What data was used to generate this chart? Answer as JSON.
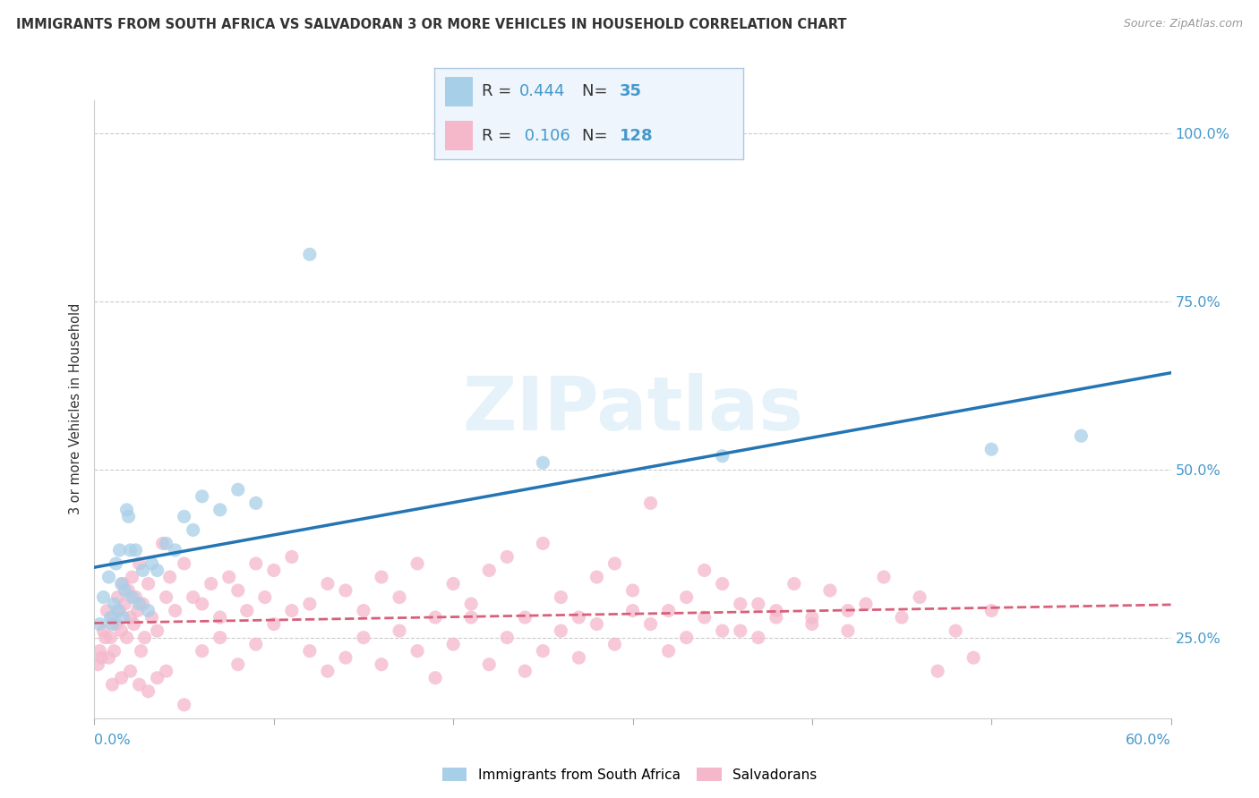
{
  "title": "IMMIGRANTS FROM SOUTH AFRICA VS SALVADORAN 3 OR MORE VEHICLES IN HOUSEHOLD CORRELATION CHART",
  "source": "Source: ZipAtlas.com",
  "ylabel": "3 or more Vehicles in Household",
  "legend_label1": "Immigrants from South Africa",
  "legend_label2": "Salvadorans",
  "R1": "0.444",
  "N1": "35",
  "R2": "0.106",
  "N2": "128",
  "color1": "#a8cfe8",
  "color2": "#f5b8cb",
  "line_color1": "#2475b4",
  "line_color2": "#d95f7a",
  "accent_color": "#4499cc",
  "xmin": 0.0,
  "xmax": 60.0,
  "ymin": 13.0,
  "ymax": 105.0,
  "yticks": [
    25.0,
    50.0,
    75.0,
    100.0
  ],
  "blue_scatter_x": [
    0.3,
    0.5,
    0.8,
    0.9,
    1.0,
    1.1,
    1.2,
    1.3,
    1.4,
    1.5,
    1.6,
    1.7,
    1.8,
    1.9,
    2.0,
    2.1,
    2.3,
    2.5,
    2.7,
    3.0,
    3.2,
    3.5,
    4.0,
    4.5,
    5.0,
    5.5,
    6.0,
    7.0,
    8.0,
    9.0,
    12.0,
    25.0,
    35.0,
    50.0,
    55.0
  ],
  "blue_scatter_y": [
    27.0,
    31.0,
    34.0,
    28.0,
    27.0,
    30.0,
    36.0,
    29.0,
    38.0,
    33.0,
    28.0,
    32.0,
    44.0,
    43.0,
    38.0,
    31.0,
    38.0,
    30.0,
    35.0,
    29.0,
    36.0,
    35.0,
    39.0,
    38.0,
    43.0,
    41.0,
    46.0,
    44.0,
    47.0,
    45.0,
    82.0,
    51.0,
    52.0,
    53.0,
    55.0
  ],
  "pink_scatter_x": [
    0.2,
    0.3,
    0.4,
    0.5,
    0.6,
    0.7,
    0.8,
    0.9,
    1.0,
    1.1,
    1.2,
    1.3,
    1.4,
    1.5,
    1.6,
    1.7,
    1.8,
    1.9,
    2.0,
    2.1,
    2.2,
    2.3,
    2.4,
    2.5,
    2.6,
    2.7,
    2.8,
    3.0,
    3.2,
    3.5,
    3.8,
    4.0,
    4.2,
    4.5,
    5.0,
    5.5,
    6.0,
    6.5,
    7.0,
    7.5,
    8.0,
    8.5,
    9.0,
    9.5,
    10.0,
    11.0,
    12.0,
    13.0,
    14.0,
    15.0,
    16.0,
    17.0,
    18.0,
    19.0,
    20.0,
    21.0,
    22.0,
    23.0,
    24.0,
    25.0,
    26.0,
    27.0,
    28.0,
    29.0,
    30.0,
    31.0,
    32.0,
    33.0,
    34.0,
    35.0,
    36.0,
    37.0,
    38.0,
    39.0,
    40.0,
    41.0,
    42.0,
    43.0,
    44.0,
    45.0,
    46.0,
    47.0,
    48.0,
    49.0,
    50.0,
    1.0,
    1.5,
    2.0,
    2.5,
    3.0,
    3.5,
    4.0,
    5.0,
    6.0,
    7.0,
    8.0,
    9.0,
    10.0,
    11.0,
    12.0,
    13.0,
    14.0,
    15.0,
    16.0,
    17.0,
    18.0,
    19.0,
    20.0,
    21.0,
    22.0,
    23.0,
    24.0,
    25.0,
    26.0,
    27.0,
    28.0,
    29.0,
    30.0,
    31.0,
    32.0,
    33.0,
    34.0,
    35.0,
    36.0,
    37.0,
    38.0,
    40.0,
    42.0
  ],
  "pink_scatter_y": [
    21.0,
    23.0,
    22.0,
    26.0,
    25.0,
    29.0,
    22.0,
    25.0,
    28.0,
    23.0,
    27.0,
    31.0,
    29.0,
    26.0,
    33.0,
    30.0,
    25.0,
    32.0,
    28.0,
    34.0,
    27.0,
    31.0,
    29.0,
    36.0,
    23.0,
    30.0,
    25.0,
    33.0,
    28.0,
    26.0,
    39.0,
    31.0,
    34.0,
    29.0,
    36.0,
    31.0,
    30.0,
    33.0,
    28.0,
    34.0,
    32.0,
    29.0,
    36.0,
    31.0,
    35.0,
    37.0,
    30.0,
    33.0,
    32.0,
    29.0,
    34.0,
    31.0,
    36.0,
    28.0,
    33.0,
    30.0,
    35.0,
    37.0,
    28.0,
    39.0,
    31.0,
    28.0,
    34.0,
    36.0,
    32.0,
    45.0,
    29.0,
    31.0,
    35.0,
    33.0,
    26.0,
    30.0,
    29.0,
    33.0,
    27.0,
    32.0,
    29.0,
    30.0,
    34.0,
    28.0,
    31.0,
    20.0,
    26.0,
    22.0,
    29.0,
    18.0,
    19.0,
    20.0,
    18.0,
    17.0,
    19.0,
    20.0,
    15.0,
    23.0,
    25.0,
    21.0,
    24.0,
    27.0,
    29.0,
    23.0,
    20.0,
    22.0,
    25.0,
    21.0,
    26.0,
    23.0,
    19.0,
    24.0,
    28.0,
    21.0,
    25.0,
    20.0,
    23.0,
    26.0,
    22.0,
    27.0,
    24.0,
    29.0,
    27.0,
    23.0,
    25.0,
    28.0,
    26.0,
    30.0,
    25.0,
    28.0,
    28.0,
    26.0
  ]
}
